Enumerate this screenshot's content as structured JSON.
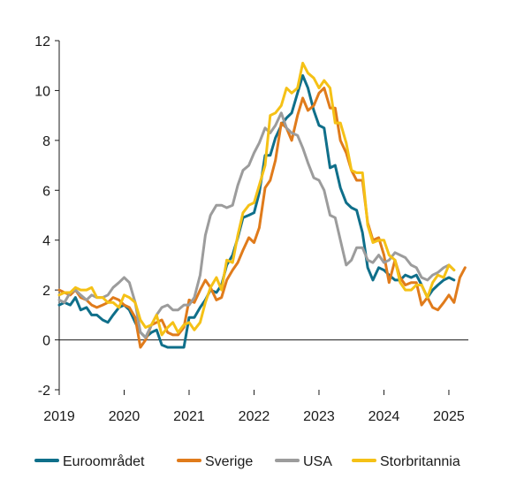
{
  "chart_data": {
    "type": "line",
    "title": "",
    "xlabel": "",
    "ylabel": "",
    "xlim": [
      2019.0,
      2025.3
    ],
    "ylim": [
      -2,
      12
    ],
    "y_ticks": [
      -2,
      0,
      2,
      4,
      6,
      8,
      10,
      12
    ],
    "y_tick_labels": [
      "-2",
      "0",
      "2",
      "4",
      "6",
      "8",
      "10",
      "12"
    ],
    "x_ticks": [
      2019,
      2020,
      2021,
      2022,
      2023,
      2024,
      2025
    ],
    "x_tick_labels": [
      "2019",
      "2020",
      "2021",
      "2022",
      "2023",
      "2024",
      "2025"
    ],
    "grid": false,
    "legend_position": "bottom",
    "series": [
      {
        "name": "Euroområdet",
        "color": "#0f6f8a",
        "points": [
          [
            2019.0,
            1.4
          ],
          [
            2019.08,
            1.5
          ],
          [
            2019.17,
            1.4
          ],
          [
            2019.25,
            1.7
          ],
          [
            2019.33,
            1.2
          ],
          [
            2019.42,
            1.3
          ],
          [
            2019.5,
            1.0
          ],
          [
            2019.58,
            1.0
          ],
          [
            2019.67,
            0.8
          ],
          [
            2019.75,
            0.7
          ],
          [
            2019.83,
            1.0
          ],
          [
            2019.92,
            1.3
          ],
          [
            2020.0,
            1.4
          ],
          [
            2020.08,
            1.2
          ],
          [
            2020.17,
            0.7
          ],
          [
            2020.25,
            0.3
          ],
          [
            2020.33,
            0.1
          ],
          [
            2020.42,
            0.3
          ],
          [
            2020.5,
            0.4
          ],
          [
            2020.58,
            -0.2
          ],
          [
            2020.67,
            -0.3
          ],
          [
            2020.75,
            -0.3
          ],
          [
            2020.83,
            -0.3
          ],
          [
            2020.92,
            -0.3
          ],
          [
            2021.0,
            0.9
          ],
          [
            2021.08,
            0.9
          ],
          [
            2021.17,
            1.3
          ],
          [
            2021.25,
            1.6
          ],
          [
            2021.33,
            2.0
          ],
          [
            2021.42,
            1.9
          ],
          [
            2021.5,
            2.2
          ],
          [
            2021.58,
            3.0
          ],
          [
            2021.67,
            3.4
          ],
          [
            2021.75,
            4.1
          ],
          [
            2021.83,
            4.9
          ],
          [
            2021.92,
            5.0
          ],
          [
            2022.0,
            5.1
          ],
          [
            2022.08,
            5.9
          ],
          [
            2022.17,
            7.4
          ],
          [
            2022.25,
            7.4
          ],
          [
            2022.33,
            8.1
          ],
          [
            2022.42,
            8.6
          ],
          [
            2022.5,
            8.9
          ],
          [
            2022.58,
            9.1
          ],
          [
            2022.67,
            9.9
          ],
          [
            2022.75,
            10.6
          ],
          [
            2022.83,
            10.1
          ],
          [
            2022.92,
            9.2
          ],
          [
            2023.0,
            8.6
          ],
          [
            2023.08,
            8.5
          ],
          [
            2023.17,
            6.9
          ],
          [
            2023.25,
            7.0
          ],
          [
            2023.33,
            6.1
          ],
          [
            2023.42,
            5.5
          ],
          [
            2023.5,
            5.3
          ],
          [
            2023.58,
            5.2
          ],
          [
            2023.67,
            4.3
          ],
          [
            2023.75,
            2.9
          ],
          [
            2023.83,
            2.4
          ],
          [
            2023.92,
            2.9
          ],
          [
            2024.0,
            2.8
          ],
          [
            2024.08,
            2.6
          ],
          [
            2024.17,
            2.4
          ],
          [
            2024.25,
            2.4
          ],
          [
            2024.33,
            2.6
          ],
          [
            2024.42,
            2.5
          ],
          [
            2024.5,
            2.6
          ],
          [
            2024.58,
            2.2
          ],
          [
            2024.67,
            1.7
          ],
          [
            2024.75,
            2.0
          ],
          [
            2024.83,
            2.2
          ],
          [
            2024.92,
            2.4
          ],
          [
            2025.0,
            2.5
          ],
          [
            2025.08,
            2.4
          ]
        ]
      },
      {
        "name": "Sverige",
        "color": "#e07b1b",
        "points": [
          [
            2019.0,
            2.0
          ],
          [
            2019.08,
            1.9
          ],
          [
            2019.17,
            1.8
          ],
          [
            2019.25,
            2.0
          ],
          [
            2019.33,
            1.7
          ],
          [
            2019.42,
            1.6
          ],
          [
            2019.5,
            1.4
          ],
          [
            2019.58,
            1.3
          ],
          [
            2019.67,
            1.4
          ],
          [
            2019.75,
            1.5
          ],
          [
            2019.83,
            1.7
          ],
          [
            2019.92,
            1.6
          ],
          [
            2020.0,
            1.4
          ],
          [
            2020.08,
            1.3
          ],
          [
            2020.17,
            0.9
          ],
          [
            2020.25,
            -0.3
          ],
          [
            2020.33,
            0.0
          ],
          [
            2020.42,
            0.6
          ],
          [
            2020.5,
            0.7
          ],
          [
            2020.58,
            0.8
          ],
          [
            2020.67,
            0.3
          ],
          [
            2020.75,
            0.2
          ],
          [
            2020.83,
            0.2
          ],
          [
            2020.92,
            0.5
          ],
          [
            2021.0,
            1.6
          ],
          [
            2021.08,
            1.5
          ],
          [
            2021.17,
            2.0
          ],
          [
            2021.25,
            2.4
          ],
          [
            2021.33,
            2.1
          ],
          [
            2021.42,
            1.6
          ],
          [
            2021.5,
            1.7
          ],
          [
            2021.58,
            2.4
          ],
          [
            2021.67,
            2.8
          ],
          [
            2021.75,
            3.1
          ],
          [
            2021.83,
            3.6
          ],
          [
            2021.92,
            4.1
          ],
          [
            2022.0,
            3.9
          ],
          [
            2022.08,
            4.5
          ],
          [
            2022.17,
            6.1
          ],
          [
            2022.25,
            6.4
          ],
          [
            2022.33,
            7.2
          ],
          [
            2022.42,
            8.7
          ],
          [
            2022.5,
            8.5
          ],
          [
            2022.58,
            8.0
          ],
          [
            2022.67,
            9.0
          ],
          [
            2022.75,
            9.7
          ],
          [
            2022.83,
            9.2
          ],
          [
            2022.92,
            9.4
          ],
          [
            2023.0,
            9.9
          ],
          [
            2023.08,
            10.1
          ],
          [
            2023.17,
            9.3
          ],
          [
            2023.25,
            9.3
          ],
          [
            2023.33,
            8.0
          ],
          [
            2023.42,
            7.5
          ],
          [
            2023.5,
            6.8
          ],
          [
            2023.58,
            6.4
          ],
          [
            2023.67,
            6.4
          ],
          [
            2023.75,
            4.7
          ],
          [
            2023.83,
            4.0
          ],
          [
            2023.92,
            4.1
          ],
          [
            2024.0,
            3.4
          ],
          [
            2024.08,
            2.3
          ],
          [
            2024.17,
            3.2
          ],
          [
            2024.25,
            2.5
          ],
          [
            2024.33,
            2.2
          ],
          [
            2024.42,
            2.3
          ],
          [
            2024.5,
            2.3
          ],
          [
            2024.58,
            1.4
          ],
          [
            2024.67,
            1.7
          ],
          [
            2024.75,
            1.3
          ],
          [
            2024.83,
            1.2
          ],
          [
            2024.92,
            1.5
          ],
          [
            2025.0,
            1.8
          ],
          [
            2025.08,
            1.5
          ],
          [
            2025.17,
            2.5
          ],
          [
            2025.25,
            2.9
          ]
        ]
      },
      {
        "name": "USA",
        "color": "#9c9c9c",
        "points": [
          [
            2019.0,
            1.6
          ],
          [
            2019.08,
            1.5
          ],
          [
            2019.17,
            1.9
          ],
          [
            2019.25,
            2.0
          ],
          [
            2019.33,
            1.8
          ],
          [
            2019.42,
            1.6
          ],
          [
            2019.5,
            1.8
          ],
          [
            2019.58,
            1.7
          ],
          [
            2019.67,
            1.7
          ],
          [
            2019.75,
            1.8
          ],
          [
            2019.83,
            2.1
          ],
          [
            2019.92,
            2.3
          ],
          [
            2020.0,
            2.5
          ],
          [
            2020.08,
            2.3
          ],
          [
            2020.17,
            1.5
          ],
          [
            2020.25,
            0.3
          ],
          [
            2020.33,
            0.1
          ],
          [
            2020.42,
            0.6
          ],
          [
            2020.5,
            1.0
          ],
          [
            2020.58,
            1.3
          ],
          [
            2020.67,
            1.4
          ],
          [
            2020.75,
            1.2
          ],
          [
            2020.83,
            1.2
          ],
          [
            2020.92,
            1.4
          ],
          [
            2021.0,
            1.4
          ],
          [
            2021.08,
            1.7
          ],
          [
            2021.17,
            2.6
          ],
          [
            2021.25,
            4.2
          ],
          [
            2021.33,
            5.0
          ],
          [
            2021.42,
            5.4
          ],
          [
            2021.5,
            5.4
          ],
          [
            2021.58,
            5.3
          ],
          [
            2021.67,
            5.4
          ],
          [
            2021.75,
            6.2
          ],
          [
            2021.83,
            6.8
          ],
          [
            2021.92,
            7.0
          ],
          [
            2022.0,
            7.5
          ],
          [
            2022.08,
            7.9
          ],
          [
            2022.17,
            8.5
          ],
          [
            2022.25,
            8.3
          ],
          [
            2022.33,
            8.6
          ],
          [
            2022.42,
            9.1
          ],
          [
            2022.5,
            8.5
          ],
          [
            2022.58,
            8.3
          ],
          [
            2022.67,
            8.2
          ],
          [
            2022.75,
            7.7
          ],
          [
            2022.83,
            7.1
          ],
          [
            2022.92,
            6.5
          ],
          [
            2023.0,
            6.4
          ],
          [
            2023.08,
            6.0
          ],
          [
            2023.17,
            5.0
          ],
          [
            2023.25,
            4.9
          ],
          [
            2023.33,
            4.0
          ],
          [
            2023.42,
            3.0
          ],
          [
            2023.5,
            3.2
          ],
          [
            2023.58,
            3.7
          ],
          [
            2023.67,
            3.7
          ],
          [
            2023.75,
            3.2
          ],
          [
            2023.83,
            3.1
          ],
          [
            2023.92,
            3.4
          ],
          [
            2024.0,
            3.1
          ],
          [
            2024.08,
            3.2
          ],
          [
            2024.17,
            3.5
          ],
          [
            2024.25,
            3.4
          ],
          [
            2024.33,
            3.3
          ],
          [
            2024.42,
            3.0
          ],
          [
            2024.5,
            2.9
          ],
          [
            2024.58,
            2.5
          ],
          [
            2024.67,
            2.4
          ],
          [
            2024.75,
            2.6
          ],
          [
            2024.83,
            2.7
          ],
          [
            2024.92,
            2.9
          ],
          [
            2025.0,
            3.0
          ],
          [
            2025.08,
            2.8
          ]
        ]
      },
      {
        "name": "Storbritannia",
        "color": "#f5c116",
        "points": [
          [
            2019.0,
            1.8
          ],
          [
            2019.08,
            1.9
          ],
          [
            2019.17,
            1.9
          ],
          [
            2019.25,
            2.1
          ],
          [
            2019.33,
            2.0
          ],
          [
            2019.42,
            2.0
          ],
          [
            2019.5,
            2.1
          ],
          [
            2019.58,
            1.7
          ],
          [
            2019.67,
            1.7
          ],
          [
            2019.75,
            1.5
          ],
          [
            2019.83,
            1.5
          ],
          [
            2019.92,
            1.3
          ],
          [
            2020.0,
            1.8
          ],
          [
            2020.08,
            1.7
          ],
          [
            2020.17,
            1.5
          ],
          [
            2020.25,
            0.8
          ],
          [
            2020.33,
            0.5
          ],
          [
            2020.42,
            0.6
          ],
          [
            2020.5,
            1.0
          ],
          [
            2020.58,
            0.2
          ],
          [
            2020.67,
            0.5
          ],
          [
            2020.75,
            0.7
          ],
          [
            2020.83,
            0.3
          ],
          [
            2020.92,
            0.6
          ],
          [
            2021.0,
            0.7
          ],
          [
            2021.08,
            0.4
          ],
          [
            2021.17,
            0.7
          ],
          [
            2021.25,
            1.5
          ],
          [
            2021.33,
            2.1
          ],
          [
            2021.42,
            2.5
          ],
          [
            2021.5,
            2.0
          ],
          [
            2021.58,
            3.2
          ],
          [
            2021.67,
            3.1
          ],
          [
            2021.75,
            4.2
          ],
          [
            2021.83,
            5.1
          ],
          [
            2021.92,
            5.4
          ],
          [
            2022.0,
            5.5
          ],
          [
            2022.08,
            6.2
          ],
          [
            2022.17,
            7.0
          ],
          [
            2022.25,
            9.0
          ],
          [
            2022.33,
            9.1
          ],
          [
            2022.42,
            9.4
          ],
          [
            2022.5,
            10.1
          ],
          [
            2022.58,
            9.9
          ],
          [
            2022.67,
            10.1
          ],
          [
            2022.75,
            11.1
          ],
          [
            2022.83,
            10.7
          ],
          [
            2022.92,
            10.5
          ],
          [
            2023.0,
            10.1
          ],
          [
            2023.08,
            10.4
          ],
          [
            2023.17,
            10.1
          ],
          [
            2023.25,
            8.7
          ],
          [
            2023.33,
            8.7
          ],
          [
            2023.42,
            7.9
          ],
          [
            2023.5,
            6.8
          ],
          [
            2023.58,
            6.7
          ],
          [
            2023.67,
            6.7
          ],
          [
            2023.75,
            4.6
          ],
          [
            2023.83,
            3.9
          ],
          [
            2023.92,
            4.0
          ],
          [
            2024.0,
            4.0
          ],
          [
            2024.08,
            3.4
          ],
          [
            2024.17,
            3.2
          ],
          [
            2024.25,
            2.3
          ],
          [
            2024.33,
            2.0
          ],
          [
            2024.42,
            2.0
          ],
          [
            2024.5,
            2.2
          ],
          [
            2024.58,
            2.2
          ],
          [
            2024.67,
            1.7
          ],
          [
            2024.75,
            2.3
          ],
          [
            2024.83,
            2.6
          ],
          [
            2024.92,
            2.5
          ],
          [
            2025.0,
            3.0
          ],
          [
            2025.08,
            2.8
          ]
        ]
      }
    ]
  }
}
